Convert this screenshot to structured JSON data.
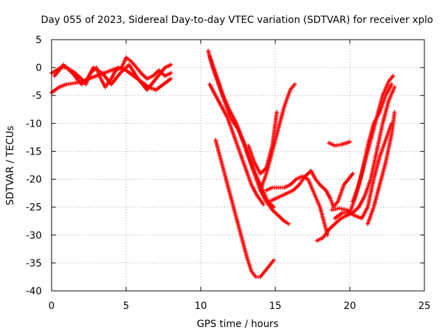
{
  "chart_data": {
    "type": "scatter",
    "title": "Day 055 of 2023, Sidereal Day-to-day VTEC variation (SDTVAR) for receiver xplo",
    "xlabel": "GPS time / hours",
    "ylabel": "SDTVAR / TECUs",
    "xlim": [
      0,
      25
    ],
    "ylim": [
      -40,
      5
    ],
    "xticks": [
      0,
      5,
      10,
      15,
      20,
      25
    ],
    "yticks": [
      5,
      0,
      -5,
      -10,
      -15,
      -20,
      -25,
      -30,
      -35,
      -40
    ],
    "xtick_labels": [
      "0",
      "5",
      "10",
      "15",
      "20",
      "25"
    ],
    "ytick_labels": [
      "5",
      "0",
      "-5",
      "-10",
      "-15",
      "-20",
      "-25",
      "-30",
      "-35",
      "-40"
    ],
    "grid": true,
    "marker": "+",
    "color": "#ff0000",
    "series": [
      {
        "name": "seg1",
        "points": [
          [
            0,
            -1
          ],
          [
            0.3,
            -0.5
          ],
          [
            0.6,
            0
          ],
          [
            1.0,
            0
          ],
          [
            1.5,
            -0.8
          ],
          [
            2.0,
            -2
          ],
          [
            2.3,
            -3
          ],
          [
            2.6,
            -1
          ],
          [
            3.0,
            0
          ],
          [
            3.3,
            -2
          ],
          [
            3.6,
            -3.5
          ],
          [
            4.0,
            -2
          ],
          [
            4.3,
            -0.5
          ],
          [
            4.7,
            0
          ],
          [
            5.0,
            1.8
          ],
          [
            5.3,
            1.2
          ],
          [
            5.7,
            0
          ],
          [
            6.0,
            -1
          ],
          [
            6.4,
            -2
          ],
          [
            6.8,
            -1.5
          ],
          [
            7.2,
            -0.5
          ],
          [
            7.6,
            -1.5
          ],
          [
            8.0,
            -1
          ]
        ]
      },
      {
        "name": "seg2",
        "points": [
          [
            0,
            -4.5
          ],
          [
            0.5,
            -3.5
          ],
          [
            1.0,
            -3
          ],
          [
            1.5,
            -2.8
          ],
          [
            2.0,
            -2.5
          ],
          [
            2.5,
            -2
          ],
          [
            3.0,
            -1.5
          ],
          [
            3.5,
            -1
          ],
          [
            4.0,
            -0.5
          ],
          [
            4.5,
            0
          ],
          [
            5.0,
            -0.5
          ],
          [
            5.5,
            -1.5
          ],
          [
            6.0,
            -2.5
          ],
          [
            6.5,
            -3.5
          ],
          [
            7.0,
            -4
          ],
          [
            7.5,
            -3
          ],
          [
            8.0,
            -2
          ]
        ]
      },
      {
        "name": "seg3",
        "points": [
          [
            0.2,
            -1.5
          ],
          [
            0.8,
            0.5
          ],
          [
            1.4,
            -1
          ],
          [
            2.0,
            -3
          ],
          [
            2.4,
            -2
          ],
          [
            2.8,
            0
          ],
          [
            3.4,
            -1
          ],
          [
            4.0,
            -3
          ],
          [
            4.6,
            -1
          ],
          [
            5.2,
            0.5
          ],
          [
            5.8,
            -2
          ],
          [
            6.4,
            -4
          ],
          [
            7.0,
            -2
          ],
          [
            7.6,
            0
          ],
          [
            8.0,
            0.5
          ]
        ]
      },
      {
        "name": "seg4",
        "points": [
          [
            10.5,
            3
          ],
          [
            10.8,
            0
          ],
          [
            11.2,
            -3
          ],
          [
            11.6,
            -6
          ],
          [
            12.0,
            -9
          ],
          [
            12.5,
            -11
          ],
          [
            13.0,
            -14
          ],
          [
            13.5,
            -18
          ],
          [
            14.0,
            -21
          ],
          [
            14.5,
            -24
          ],
          [
            14.9,
            -25
          ]
        ]
      },
      {
        "name": "seg5",
        "points": [
          [
            10.6,
            2
          ],
          [
            11.0,
            -1
          ],
          [
            11.5,
            -5
          ],
          [
            12.0,
            -8
          ],
          [
            12.4,
            -10
          ],
          [
            12.8,
            -13
          ],
          [
            13.2,
            -16
          ],
          [
            13.6,
            -19
          ],
          [
            14.0,
            -22
          ],
          [
            14.4,
            -24
          ],
          [
            14.8,
            -25.5
          ],
          [
            15.2,
            -26.5
          ],
          [
            15.6,
            -27.5
          ],
          [
            15.9,
            -28
          ]
        ]
      },
      {
        "name": "seg6",
        "points": [
          [
            10.6,
            -3
          ],
          [
            11.0,
            -5
          ],
          [
            11.4,
            -7
          ],
          [
            11.8,
            -9
          ],
          [
            12.2,
            -12
          ],
          [
            12.6,
            -15
          ],
          [
            13.0,
            -18
          ],
          [
            13.4,
            -21
          ],
          [
            13.8,
            -23
          ],
          [
            14.2,
            -24.5
          ]
        ]
      },
      {
        "name": "seg7",
        "points": [
          [
            11.0,
            -13
          ],
          [
            11.3,
            -16
          ],
          [
            11.6,
            -19
          ],
          [
            12.0,
            -23
          ],
          [
            12.4,
            -27
          ],
          [
            12.8,
            -31
          ],
          [
            13.1,
            -34
          ],
          [
            13.4,
            -36.5
          ],
          [
            13.7,
            -37.5
          ],
          [
            14.0,
            -37.5
          ],
          [
            14.3,
            -36.5
          ],
          [
            14.6,
            -35.5
          ],
          [
            14.9,
            -34.5
          ]
        ]
      },
      {
        "name": "seg8",
        "points": [
          [
            13.2,
            -14
          ],
          [
            13.6,
            -17
          ],
          [
            14.0,
            -19
          ],
          [
            14.4,
            -18
          ],
          [
            14.8,
            -14
          ],
          [
            15.1,
            -8
          ]
        ]
      },
      {
        "name": "seg9",
        "points": [
          [
            14.0,
            -22
          ],
          [
            14.4,
            -19
          ],
          [
            14.8,
            -15
          ],
          [
            15.2,
            -11
          ],
          [
            15.6,
            -7
          ],
          [
            16.0,
            -4
          ],
          [
            16.3,
            -3
          ]
        ]
      },
      {
        "name": "seg10",
        "points": [
          [
            14.4,
            -22
          ],
          [
            14.8,
            -21.5
          ],
          [
            15.2,
            -21.5
          ],
          [
            15.6,
            -21.5
          ],
          [
            16.0,
            -21
          ],
          [
            16.4,
            -20
          ],
          [
            16.8,
            -19.5
          ],
          [
            17.2,
            -20
          ],
          [
            17.6,
            -22.5
          ],
          [
            18.0,
            -25
          ],
          [
            18.3,
            -28
          ],
          [
            18.5,
            -30
          ]
        ]
      },
      {
        "name": "seg11",
        "points": [
          [
            14.6,
            -24
          ],
          [
            15.0,
            -23.5
          ],
          [
            15.4,
            -23
          ],
          [
            15.8,
            -22.5
          ],
          [
            16.2,
            -22
          ],
          [
            16.6,
            -21
          ],
          [
            17.0,
            -19.5
          ],
          [
            17.4,
            -18.5
          ],
          [
            17.7,
            -20
          ],
          [
            18.0,
            -21
          ],
          [
            18.4,
            -22
          ],
          [
            18.7,
            -23.5
          ],
          [
            18.9,
            -25
          ],
          [
            19.2,
            -24
          ],
          [
            19.6,
            -21
          ],
          [
            20.2,
            -19
          ]
        ]
      },
      {
        "name": "seg12",
        "points": [
          [
            18.6,
            -13.5
          ],
          [
            19.0,
            -14
          ],
          [
            19.4,
            -13.8
          ],
          [
            19.8,
            -13.5
          ],
          [
            20.0,
            -13.3
          ]
        ]
      },
      {
        "name": "seg13",
        "points": [
          [
            17.8,
            -31
          ],
          [
            18.2,
            -30.5
          ],
          [
            18.6,
            -29
          ],
          [
            19.0,
            -28
          ],
          [
            19.4,
            -27
          ],
          [
            19.8,
            -26.5
          ],
          [
            20.2,
            -26
          ],
          [
            20.6,
            -25
          ],
          [
            21.0,
            -23
          ],
          [
            21.4,
            -20
          ],
          [
            21.8,
            -15
          ],
          [
            22.2,
            -10
          ],
          [
            22.6,
            -6
          ],
          [
            23.0,
            -3.5
          ]
        ]
      },
      {
        "name": "seg14",
        "points": [
          [
            19.0,
            -27
          ],
          [
            19.5,
            -26
          ],
          [
            20.0,
            -26
          ],
          [
            20.4,
            -23
          ],
          [
            20.8,
            -19
          ],
          [
            21.2,
            -14
          ],
          [
            21.6,
            -10
          ],
          [
            22.0,
            -8
          ],
          [
            22.4,
            -5
          ],
          [
            22.8,
            -3
          ]
        ]
      },
      {
        "name": "seg15",
        "points": [
          [
            18.8,
            -25.5
          ],
          [
            19.3,
            -25.2
          ],
          [
            19.8,
            -25.5
          ],
          [
            20.3,
            -26.5
          ],
          [
            20.8,
            -27
          ],
          [
            21.2,
            -25
          ],
          [
            21.6,
            -20
          ],
          [
            22.0,
            -16
          ],
          [
            22.4,
            -13
          ],
          [
            22.8,
            -10
          ]
        ]
      },
      {
        "name": "seg16",
        "points": [
          [
            20.2,
            -24
          ],
          [
            20.6,
            -21
          ],
          [
            21.0,
            -17
          ],
          [
            21.4,
            -13
          ],
          [
            21.8,
            -9
          ],
          [
            22.2,
            -5
          ],
          [
            22.6,
            -2.5
          ],
          [
            22.9,
            -1.5
          ]
        ]
      },
      {
        "name": "seg17",
        "points": [
          [
            21.2,
            -28
          ],
          [
            21.6,
            -25
          ],
          [
            22.0,
            -21
          ],
          [
            22.4,
            -17
          ],
          [
            22.8,
            -12
          ],
          [
            23.0,
            -8
          ]
        ]
      }
    ]
  }
}
